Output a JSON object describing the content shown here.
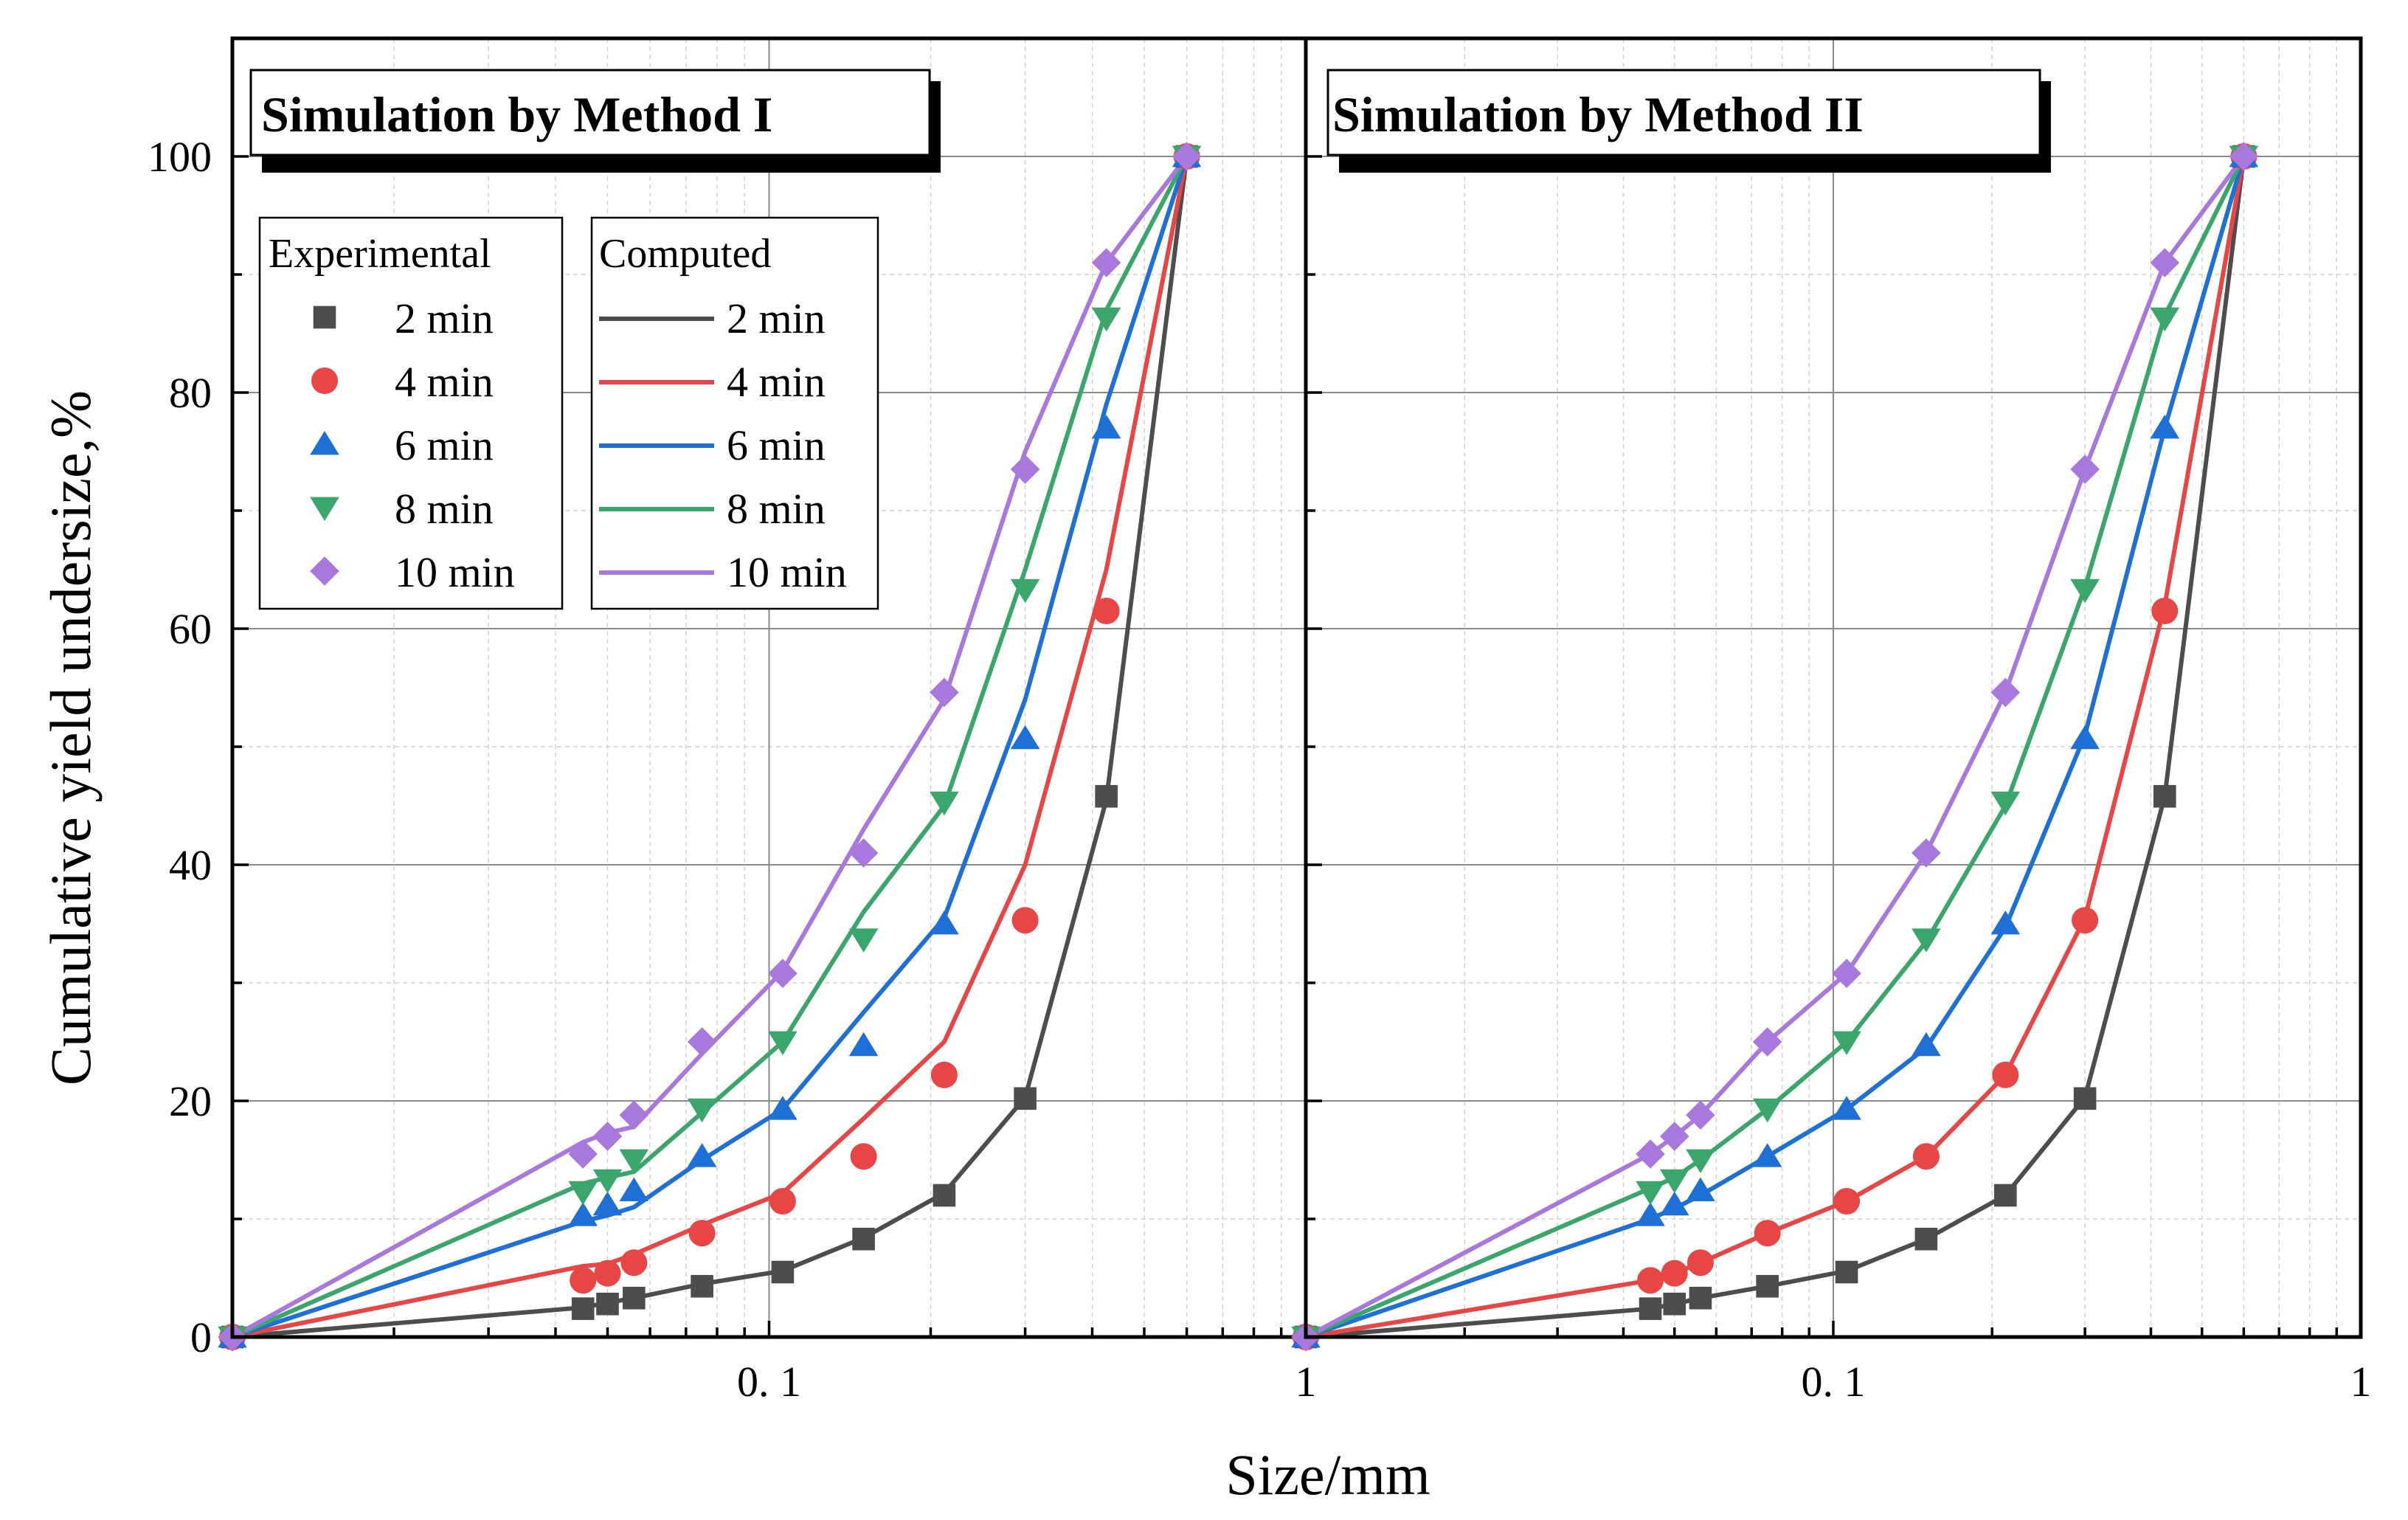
{
  "chart_data": [
    {
      "id": "panel-method-1",
      "type": "line",
      "title": "Simulation by Method I",
      "xscale": "log",
      "xlim": [
        0.01,
        1
      ],
      "ylim": [
        0,
        110
      ],
      "x_tick_labels": [
        {
          "value": 0.1,
          "label": "0. 1"
        },
        {
          "value": 1,
          "label": "1"
        }
      ],
      "y_ticks": [
        0,
        20,
        40,
        60,
        80,
        100
      ],
      "grid": true,
      "x_exp": [
        0.01,
        0.045,
        0.05,
        0.056,
        0.075,
        0.106,
        0.15,
        0.212,
        0.3,
        0.425,
        0.6
      ],
      "x_comp": [
        0.01,
        0.045,
        0.05,
        0.056,
        0.075,
        0.106,
        0.15,
        0.212,
        0.3,
        0.425,
        0.6
      ],
      "experimental": [
        {
          "name": "2 min",
          "values": [
            0,
            2.4,
            2.8,
            3.3,
            4.3,
            5.5,
            8.3,
            12.0,
            20.2,
            45.8,
            100
          ]
        },
        {
          "name": "4 min",
          "values": [
            0,
            4.8,
            5.4,
            6.3,
            8.8,
            11.5,
            15.3,
            22.2,
            35.3,
            61.5,
            100
          ]
        },
        {
          "name": "6 min",
          "values": [
            0,
            10.3,
            11.2,
            12.4,
            15.3,
            19.3,
            24.7,
            35.0,
            50.7,
            77.0,
            100
          ]
        },
        {
          "name": "8 min",
          "values": [
            0,
            12.3,
            13.3,
            15.0,
            19.3,
            25.0,
            33.7,
            45.3,
            63.3,
            86.3,
            100
          ]
        },
        {
          "name": "10 min",
          "values": [
            0,
            15.5,
            17.0,
            18.8,
            25.0,
            30.8,
            41.0,
            54.6,
            73.5,
            91.0,
            100
          ]
        }
      ],
      "computed": [
        {
          "name": "2 min",
          "values": [
            0,
            2.5,
            2.9,
            3.3,
            4.5,
            5.6,
            8.4,
            12.2,
            20.3,
            45.5,
            100
          ]
        },
        {
          "name": "4 min",
          "values": [
            0,
            6.0,
            6.2,
            7.0,
            9.5,
            12.2,
            18.5,
            25.0,
            40.0,
            65.0,
            100
          ]
        },
        {
          "name": "6 min",
          "values": [
            0,
            9.8,
            10.3,
            11.0,
            15.0,
            19.3,
            27.5,
            35.5,
            54.0,
            79.0,
            100
          ]
        },
        {
          "name": "8 min",
          "values": [
            0,
            13.0,
            13.5,
            14.0,
            19.0,
            25.0,
            36.0,
            45.0,
            65.0,
            87.0,
            100
          ]
        },
        {
          "name": "10 min",
          "values": [
            0,
            16.5,
            17.3,
            17.8,
            24.0,
            31.0,
            43.0,
            54.0,
            75.0,
            91.0,
            100
          ]
        }
      ]
    },
    {
      "id": "panel-method-2",
      "type": "line",
      "title": "Simulation by Method II",
      "xscale": "log",
      "xlim": [
        0.01,
        1
      ],
      "ylim": [
        0,
        110
      ],
      "x_tick_labels": [
        {
          "value": 0.1,
          "label": "0. 1"
        },
        {
          "value": 1,
          "label": "1"
        }
      ],
      "y_ticks": [
        0,
        20,
        40,
        60,
        80,
        100
      ],
      "grid": true,
      "x_exp": [
        0.01,
        0.045,
        0.05,
        0.056,
        0.075,
        0.106,
        0.15,
        0.212,
        0.3,
        0.425,
        0.6
      ],
      "x_comp": [
        0.01,
        0.045,
        0.05,
        0.056,
        0.075,
        0.106,
        0.15,
        0.212,
        0.3,
        0.425,
        0.6
      ],
      "experimental": [
        {
          "name": "2 min",
          "values": [
            0,
            2.4,
            2.8,
            3.3,
            4.3,
            5.5,
            8.3,
            12.0,
            20.2,
            45.8,
            100
          ]
        },
        {
          "name": "4 min",
          "values": [
            0,
            4.8,
            5.4,
            6.3,
            8.8,
            11.5,
            15.3,
            22.2,
            35.3,
            61.5,
            100
          ]
        },
        {
          "name": "6 min",
          "values": [
            0,
            10.3,
            11.2,
            12.4,
            15.3,
            19.3,
            24.7,
            35.0,
            50.7,
            77.0,
            100
          ]
        },
        {
          "name": "8 min",
          "values": [
            0,
            12.3,
            13.3,
            15.0,
            19.3,
            25.0,
            33.7,
            45.3,
            63.3,
            86.3,
            100
          ]
        },
        {
          "name": "10 min",
          "values": [
            0,
            15.5,
            17.0,
            18.8,
            25.0,
            30.8,
            41.0,
            54.6,
            73.5,
            91.0,
            100
          ]
        }
      ],
      "computed": [
        {
          "name": "2 min",
          "values": [
            0,
            2.4,
            2.8,
            3.3,
            4.3,
            5.6,
            8.3,
            12.0,
            20.3,
            45.8,
            100
          ]
        },
        {
          "name": "4 min",
          "values": [
            0,
            4.8,
            5.4,
            6.3,
            8.8,
            11.5,
            15.3,
            22.2,
            35.5,
            62.0,
            100
          ]
        },
        {
          "name": "6 min",
          "values": [
            0,
            10.0,
            10.9,
            12.0,
            15.3,
            19.3,
            24.5,
            34.7,
            51.0,
            77.0,
            100
          ]
        },
        {
          "name": "8 min",
          "values": [
            0,
            12.6,
            13.5,
            15.0,
            19.3,
            25.0,
            33.5,
            45.0,
            63.5,
            86.5,
            100
          ]
        },
        {
          "name": "10 min",
          "values": [
            0,
            15.5,
            17.0,
            18.8,
            25.0,
            30.8,
            41.0,
            54.6,
            73.5,
            91.0,
            100
          ]
        }
      ]
    }
  ],
  "ylabel": "Cumulative yield undersize,%",
  "xlabel": "Size/mm",
  "legend": {
    "placement": "top-left of first panel",
    "experimental_title": "Experimental",
    "computed_title": "Computed"
  },
  "series_style": [
    {
      "name": "2 min",
      "color": "#4d4d4d",
      "marker": "square"
    },
    {
      "name": "4 min",
      "color": "#e84545",
      "marker": "circle"
    },
    {
      "name": "6 min",
      "color": "#1e6fd6",
      "marker": "triangle-up"
    },
    {
      "name": "8 min",
      "color": "#3aa66b",
      "marker": "triangle-down"
    },
    {
      "name": "10 min",
      "color": "#a878dc",
      "marker": "diamond"
    }
  ]
}
